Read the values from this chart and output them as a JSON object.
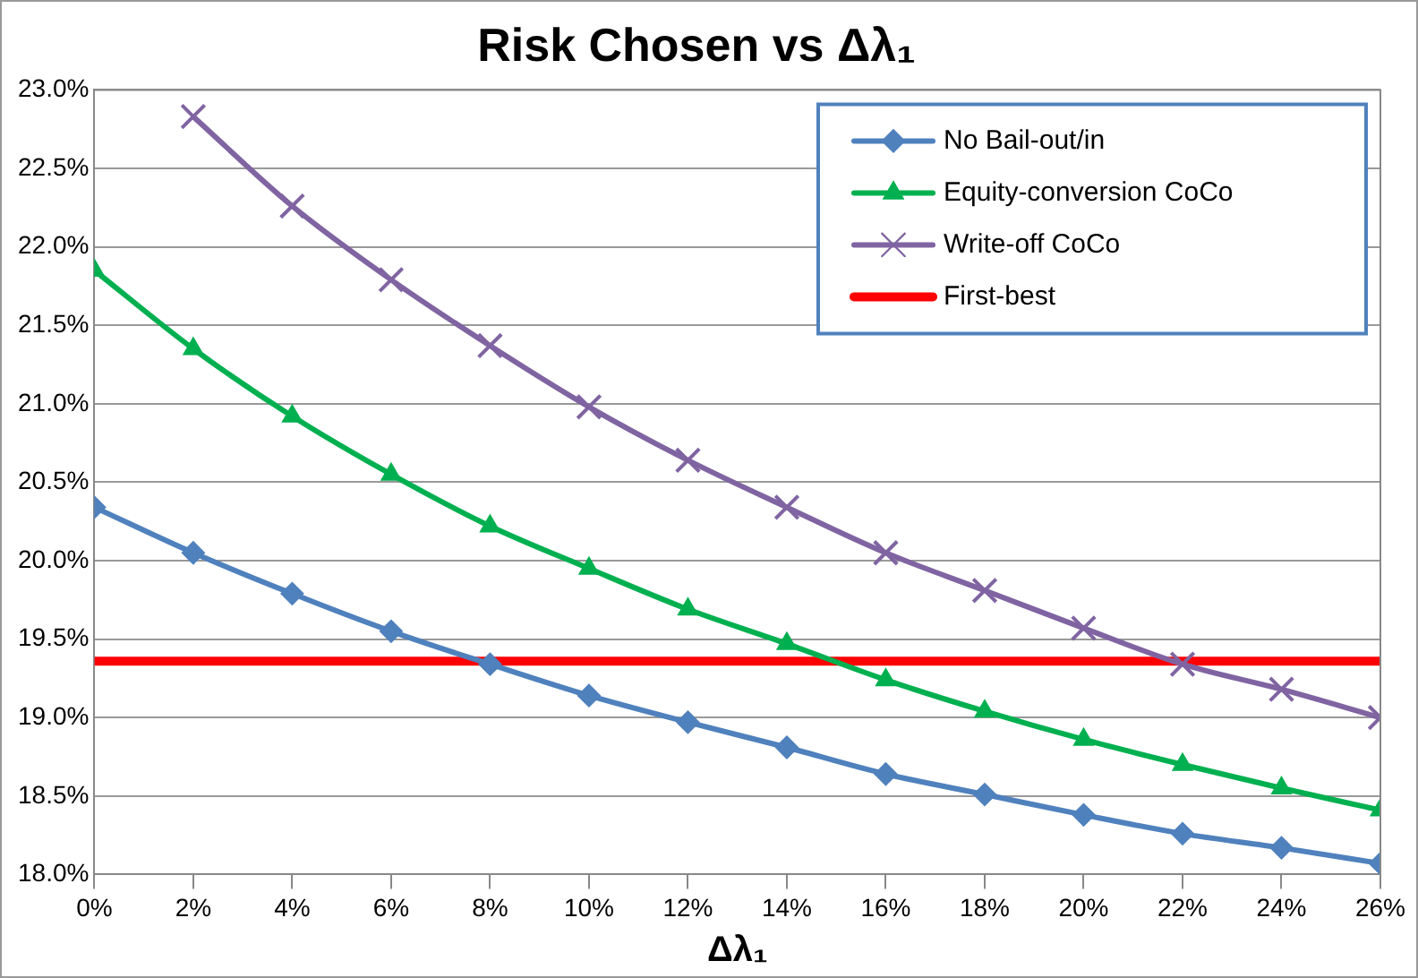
{
  "chart_data": {
    "type": "line",
    "title": "Risk Chosen vs Δλ₁",
    "xlabel": "Δλ₁",
    "categories": [
      "0%",
      "2%",
      "4%",
      "6%",
      "8%",
      "10%",
      "12%",
      "14%",
      "16%",
      "18%",
      "20%",
      "22%",
      "24%",
      "26%"
    ],
    "series": [
      {
        "name": "No Bail-out/in",
        "color": "#4f81bd",
        "marker": "diamond",
        "values": [
          20.34,
          20.05,
          19.79,
          19.55,
          19.34,
          19.14,
          18.97,
          18.81,
          18.64,
          18.51,
          18.38,
          18.26,
          18.17,
          18.07
        ]
      },
      {
        "name": "Equity-conversion CoCo",
        "color": "#00b050",
        "marker": "triangle",
        "values": [
          21.85,
          21.35,
          20.92,
          20.55,
          20.22,
          19.95,
          19.69,
          19.47,
          19.24,
          19.04,
          18.86,
          18.7,
          18.55,
          18.41
        ]
      },
      {
        "name": "Write-off CoCo",
        "color": "#8064a2",
        "marker": "cross",
        "values": [
          null,
          22.83,
          22.26,
          21.79,
          21.37,
          20.98,
          20.64,
          20.34,
          20.05,
          19.81,
          19.57,
          19.34,
          19.18,
          19.0
        ]
      },
      {
        "name": "First-best",
        "color": "#ff0000",
        "marker": "none",
        "values": [
          19.36,
          19.36,
          19.36,
          19.36,
          19.36,
          19.36,
          19.36,
          19.36,
          19.36,
          19.36,
          19.36,
          19.36,
          19.36,
          19.36
        ]
      }
    ],
    "ylim": [
      18,
      23
    ],
    "yticks": [
      {
        "value": 18,
        "label": "18.0%"
      },
      {
        "value": 18.5,
        "label": "18.5%"
      },
      {
        "value": 19,
        "label": "19.0%"
      },
      {
        "value": 19.5,
        "label": "19.5%"
      },
      {
        "value": 20,
        "label": "20.0%"
      },
      {
        "value": 20.5,
        "label": "20.5%"
      },
      {
        "value": 21,
        "label": "21.0%"
      },
      {
        "value": 21.5,
        "label": "21.5%"
      },
      {
        "value": 22,
        "label": "22.0%"
      },
      {
        "value": 22.5,
        "label": "22.5%"
      },
      {
        "value": 23,
        "label": "23.0%"
      }
    ],
    "grid": "y",
    "legend": "top right",
    "line_style": "solid"
  }
}
